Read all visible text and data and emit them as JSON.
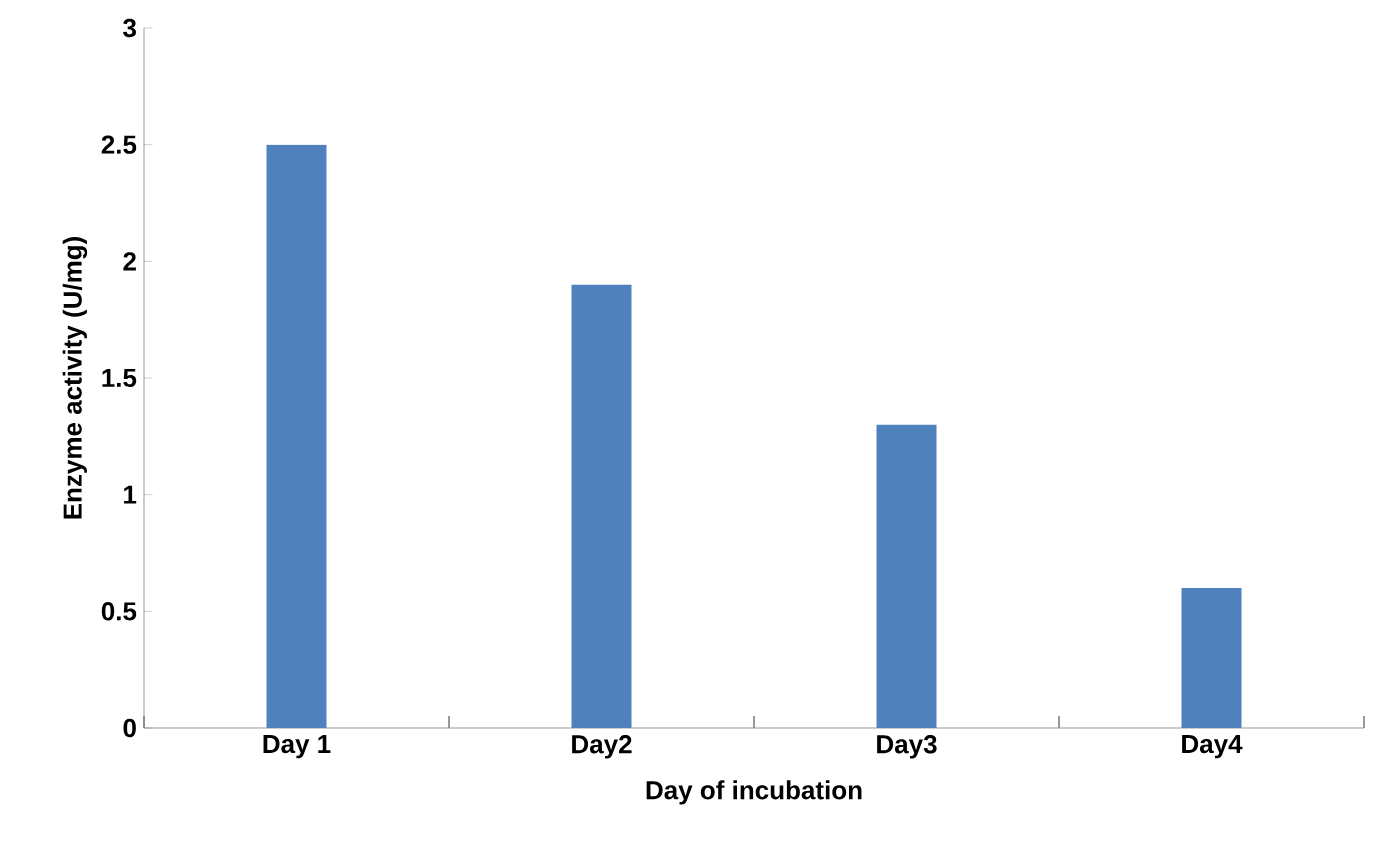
{
  "chart_data": {
    "type": "bar",
    "xlabel": "Day of incubation",
    "ylabel": "Enzyme activity (U/mg)",
    "categories": [
      "Day 1",
      "Day2",
      "Day3",
      "Day4"
    ],
    "values": [
      2.5,
      1.9,
      1.3,
      0.6
    ],
    "color": "#4f81bd",
    "ylim": [
      0,
      3
    ],
    "yticks": [
      0,
      0.5,
      1,
      1.5,
      2,
      2.5,
      3
    ],
    "grid": false,
    "legend": false
  }
}
